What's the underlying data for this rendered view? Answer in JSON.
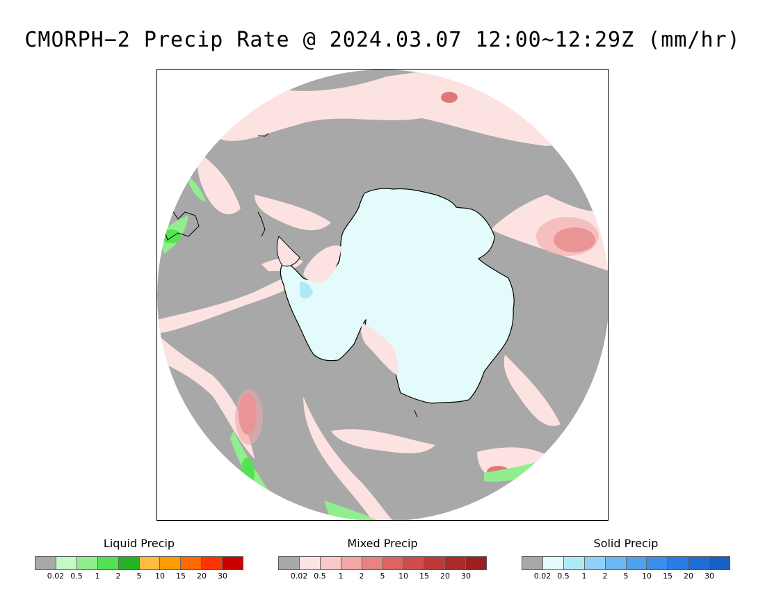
{
  "title": "CMORPH−2 Precip Rate @ 2024.03.07 12:00~12:29Z (mm/hr)",
  "map": {
    "projection": "south-polar-stereographic",
    "background_color": "#a8a8a8",
    "ice_color": "#e4fbfb",
    "coast_color": "#000000"
  },
  "legends": [
    {
      "id": "liquid",
      "title": "Liquid Precip",
      "colors": [
        "#a8a8a8",
        "#c4f9c4",
        "#8fef8f",
        "#52e352",
        "#25b325",
        "#ffbb40",
        "#ff9c00",
        "#ff6a00",
        "#ff3400",
        "#cc0000"
      ],
      "ticks": [
        "0.02",
        "0.5",
        "1",
        "2",
        "5",
        "10",
        "15",
        "20",
        "30"
      ]
    },
    {
      "id": "mixed",
      "title": "Mixed Precip",
      "colors": [
        "#a8a8a8",
        "#fde4e4",
        "#fbc8c8",
        "#f4a6a6",
        "#ea8282",
        "#dc6464",
        "#cf4c4c",
        "#c03838",
        "#ad2a2a",
        "#9c2020"
      ],
      "ticks": [
        "0.02",
        "0.5",
        "1",
        "2",
        "5",
        "10",
        "15",
        "20",
        "30"
      ]
    },
    {
      "id": "solid",
      "title": "Solid Precip",
      "colors": [
        "#a8a8a8",
        "#e4fbfb",
        "#aeeaf6",
        "#8fd0f8",
        "#6ab8f4",
        "#4ea0f0",
        "#3a8eec",
        "#2a7de4",
        "#1e6ed8",
        "#1660c8"
      ],
      "ticks": [
        "0.02",
        "0.5",
        "1",
        "2",
        "5",
        "10",
        "15",
        "20",
        "30"
      ]
    }
  ]
}
